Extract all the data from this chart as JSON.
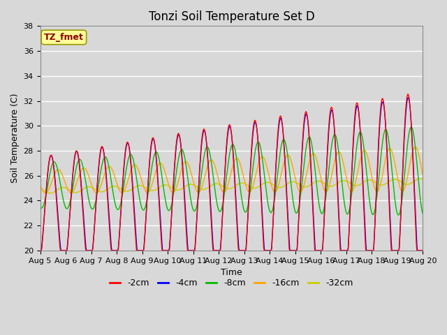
{
  "title": "Tonzi Soil Temperature Set D",
  "xlabel": "Time",
  "ylabel": "Soil Temperature (C)",
  "ylim": [
    20,
    38
  ],
  "annotation": "TZ_fmet",
  "annotation_color": "#8B0000",
  "annotation_bg": "#FFFF99",
  "annotation_edge": "#999900",
  "series_labels": [
    "-2cm",
    "-4cm",
    "-8cm",
    "-16cm",
    "-32cm"
  ],
  "series_colors": [
    "#FF0000",
    "#0000FF",
    "#00BB00",
    "#FFA500",
    "#CCCC00"
  ],
  "background_color": "#D8D8D8",
  "plot_bg_color": "#D8D8D8",
  "grid_color": "#FFFFFF",
  "xtick_labels": [
    "Aug 5",
    "Aug 6",
    "Aug 7",
    "Aug 8",
    "Aug 9",
    "Aug 10",
    "Aug 11",
    "Aug 12",
    "Aug 13",
    "Aug 14",
    "Aug 15",
    "Aug 16",
    "Aug 17",
    "Aug 18",
    "Aug 19",
    "Aug 20"
  ],
  "ytick_values": [
    20,
    22,
    24,
    26,
    28,
    30,
    32,
    34,
    36,
    38
  ],
  "title_fontsize": 12,
  "label_fontsize": 9,
  "tick_fontsize": 8
}
